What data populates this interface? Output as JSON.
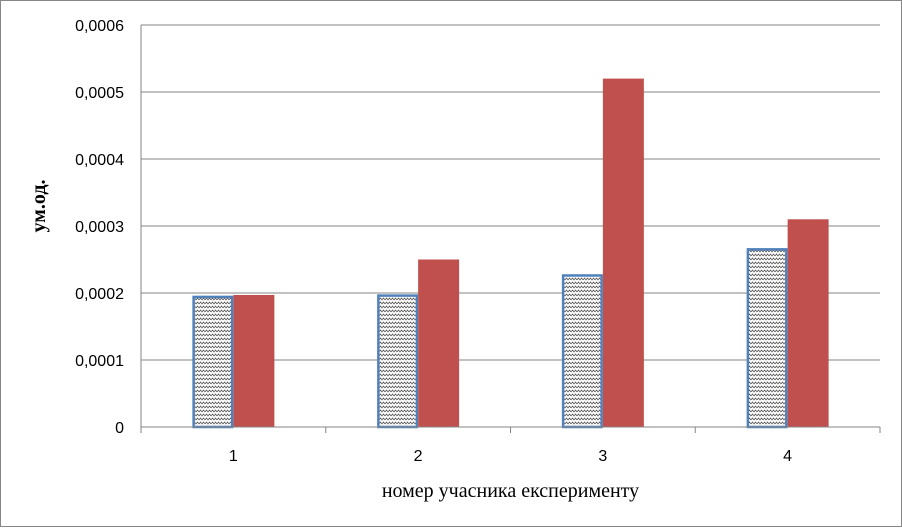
{
  "chart_data": {
    "type": "bar",
    "categories": [
      "1",
      "2",
      "3",
      "4"
    ],
    "series": [
      {
        "values": [
          0.000196,
          0.000198,
          0.000228,
          0.000267
        ],
        "color": "#ffffff",
        "stroke": "#4f81bd",
        "pattern": "zigzag"
      },
      {
        "values": [
          0.000197,
          0.00025,
          0.00052,
          0.00031
        ],
        "color": "#c0504d"
      }
    ],
    "title": "",
    "xlabel": "номер учасника експерименту",
    "ylabel": "ум.од.",
    "ylim": [
      0,
      0.0006
    ],
    "yticks": [
      "0",
      "0,0001",
      "0,0002",
      "0,0003",
      "0,0004",
      "0,0005",
      "0,0006"
    ],
    "grid": true,
    "legend": "none"
  }
}
